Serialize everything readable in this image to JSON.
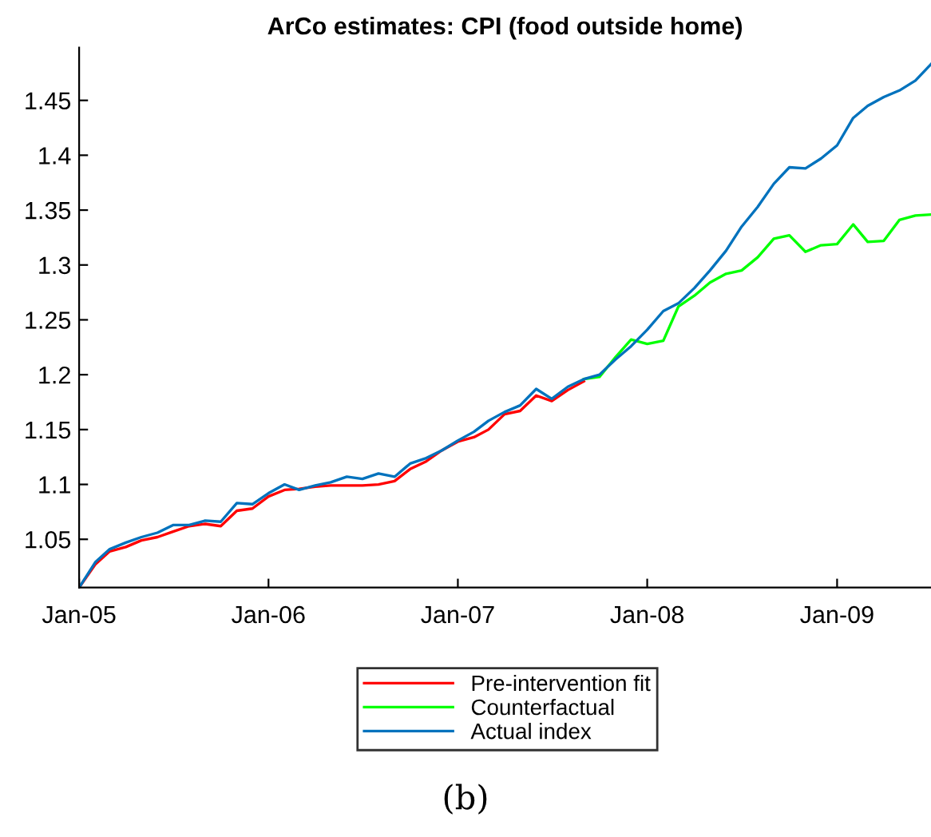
{
  "chart_data": {
    "type": "line",
    "title": "ArCo estimates: CPI (food outside home)",
    "x": [
      "2005-01",
      "2005-02",
      "2005-03",
      "2005-04",
      "2005-05",
      "2005-06",
      "2005-07",
      "2005-08",
      "2005-09",
      "2005-10",
      "2005-11",
      "2005-12",
      "2006-01",
      "2006-02",
      "2006-03",
      "2006-04",
      "2006-05",
      "2006-06",
      "2006-07",
      "2006-08",
      "2006-09",
      "2006-10",
      "2006-11",
      "2006-12",
      "2007-01",
      "2007-02",
      "2007-03",
      "2007-04",
      "2007-05",
      "2007-06",
      "2007-07",
      "2007-08",
      "2007-09",
      "2007-10",
      "2007-11",
      "2007-12",
      "2008-01",
      "2008-02",
      "2008-03",
      "2008-04",
      "2008-05",
      "2008-06",
      "2008-07",
      "2008-08",
      "2008-09",
      "2008-10",
      "2008-11",
      "2008-12",
      "2009-01",
      "2009-02",
      "2009-03",
      "2009-04",
      "2009-05",
      "2009-06",
      "2009-07"
    ],
    "series": [
      {
        "name": "Pre-intervention fit",
        "color": "#ff0000",
        "values": [
          1.006,
          1.027,
          1.039,
          1.043,
          1.049,
          1.052,
          1.057,
          1.062,
          1.064,
          1.062,
          1.076,
          1.078,
          1.089,
          1.095,
          1.096,
          1.098,
          1.099,
          1.099,
          1.099,
          1.1,
          1.103,
          1.114,
          1.121,
          1.131,
          1.139,
          1.143,
          1.15,
          1.164,
          1.167,
          1.181,
          1.176,
          1.186,
          1.194,
          null,
          null,
          null,
          null,
          null,
          null,
          null,
          null,
          null,
          null,
          null,
          null,
          null,
          null,
          null,
          null,
          null,
          null,
          null,
          null,
          null,
          null
        ]
      },
      {
        "name": "Counterfactual",
        "color": "#00ff00",
        "values": [
          null,
          null,
          null,
          null,
          null,
          null,
          null,
          null,
          null,
          null,
          null,
          null,
          null,
          null,
          null,
          null,
          null,
          null,
          null,
          null,
          null,
          null,
          null,
          null,
          null,
          null,
          null,
          null,
          null,
          null,
          null,
          null,
          1.196,
          1.198,
          1.216,
          1.232,
          1.228,
          1.231,
          1.262,
          1.272,
          1.284,
          1.292,
          1.295,
          1.307,
          1.324,
          1.327,
          1.312,
          1.318,
          1.319,
          1.337,
          1.321,
          1.322,
          1.341,
          1.345,
          1.346
        ]
      },
      {
        "name": "Actual index",
        "color": "#0072bd",
        "values": [
          1.006,
          1.029,
          1.041,
          1.047,
          1.052,
          1.056,
          1.063,
          1.063,
          1.067,
          1.066,
          1.083,
          1.082,
          1.092,
          1.1,
          1.095,
          1.099,
          1.102,
          1.107,
          1.105,
          1.11,
          1.107,
          1.119,
          1.124,
          1.131,
          1.14,
          1.148,
          1.158,
          1.166,
          1.172,
          1.187,
          1.178,
          1.189,
          1.196,
          1.2,
          1.214,
          1.226,
          1.241,
          1.258,
          1.265,
          1.279,
          1.295,
          1.313,
          1.335,
          1.353,
          1.374,
          1.389,
          1.388,
          1.397,
          1.409,
          1.434,
          1.445,
          1.453,
          1.459,
          1.468,
          1.483
        ]
      }
    ],
    "xlim": [
      "2005-01",
      "2009-07"
    ],
    "xticks": [
      {
        "value": "2005-01",
        "label": "Jan-05"
      },
      {
        "value": "2006-01",
        "label": "Jan-06"
      },
      {
        "value": "2007-01",
        "label": "Jan-07"
      },
      {
        "value": "2008-01",
        "label": "Jan-08"
      },
      {
        "value": "2009-01",
        "label": "Jan-09"
      }
    ],
    "ylim": [
      1.006,
      1.498
    ],
    "yticks": [
      1.05,
      1.1,
      1.15,
      1.2,
      1.25,
      1.3,
      1.35,
      1.4,
      1.45
    ],
    "legend": "bottom",
    "grid": false,
    "annotations": [
      "(b)"
    ]
  }
}
